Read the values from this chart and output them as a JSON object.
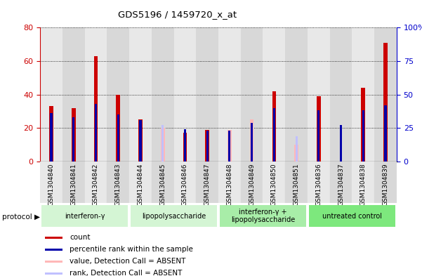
{
  "title": "GDS5196 / 1459720_x_at",
  "samples": [
    "GSM1304840",
    "GSM1304841",
    "GSM1304842",
    "GSM1304843",
    "GSM1304844",
    "GSM1304845",
    "GSM1304846",
    "GSM1304847",
    "GSM1304848",
    "GSM1304849",
    "GSM1304850",
    "GSM1304851",
    "GSM1304836",
    "GSM1304837",
    "GSM1304838",
    "GSM1304839"
  ],
  "count_values": [
    33,
    32,
    63,
    40,
    25,
    0,
    17,
    19,
    0,
    0,
    42,
    0,
    39,
    0,
    44,
    71
  ],
  "rank_values": [
    36,
    33,
    43,
    35,
    31,
    0,
    24,
    23,
    23,
    29,
    40,
    0,
    38,
    27,
    38,
    42
  ],
  "absent_value_values": [
    0,
    0,
    0,
    0,
    0,
    20,
    0,
    0,
    19,
    25,
    0,
    10,
    0,
    0,
    0,
    0
  ],
  "absent_rank_values": [
    0,
    0,
    0,
    0,
    0,
    27,
    0,
    0,
    23,
    27,
    0,
    19,
    0,
    0,
    0,
    0
  ],
  "protocols": [
    {
      "label": "interferon-γ",
      "start": 0,
      "end": 4,
      "color": "#d4f5d4"
    },
    {
      "label": "lipopolysaccharide",
      "start": 4,
      "end": 8,
      "color": "#d4f5d4"
    },
    {
      "label": "interferon-γ +\nlipopolysaccharide",
      "start": 8,
      "end": 12,
      "color": "#a8eda8"
    },
    {
      "label": "untreated control",
      "start": 12,
      "end": 16,
      "color": "#7de87d"
    }
  ],
  "ylim_left": [
    0,
    80
  ],
  "ylim_right": [
    0,
    100
  ],
  "yticks_left": [
    0,
    20,
    40,
    60,
    80
  ],
  "yticks_right": [
    0,
    25,
    50,
    75,
    100
  ],
  "left_axis_color": "#cc0000",
  "right_axis_color": "#0000cc",
  "count_color": "#cc0000",
  "rank_color": "#0000aa",
  "absent_value_color": "#ffb8b8",
  "absent_rank_color": "#c0c0ff",
  "red_bar_width": 0.18,
  "blue_bar_width": 0.1,
  "plot_bg_color": "#ffffff",
  "tick_label_bg": "#d4d4d4"
}
